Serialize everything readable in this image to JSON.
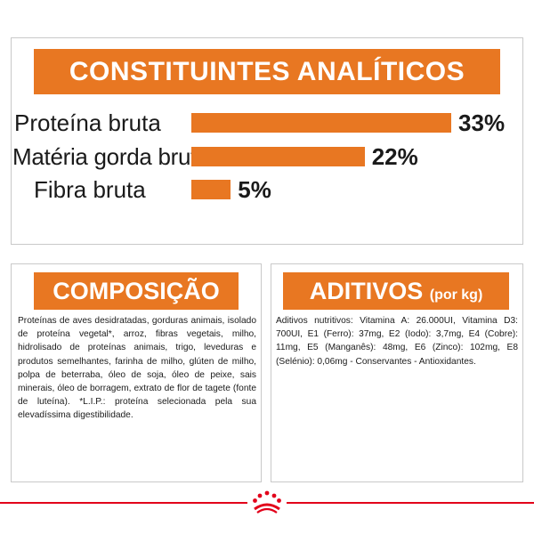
{
  "analytics": {
    "title": "CONSTITUINTES ANALÍTICOS",
    "rows": [
      {
        "label": "Proteína bruta",
        "value": "33%",
        "percent": 33
      },
      {
        "label": "Matéria gorda bruta",
        "value": "22%",
        "percent": 22
      },
      {
        "label": "Fibra bruta",
        "value": "5%",
        "percent": 5
      }
    ]
  },
  "composition": {
    "title": "COMPOSIÇÃO",
    "text": "Proteínas de aves desidratadas, gorduras animais, isolado de proteína vegetal*, arroz, fibras vegetais, milho, hidrolisado de proteínas animais, trigo, leveduras e produtos semelhantes, farinha de milho, glúten de milho, polpa de beterraba, óleo de soja, óleo de peixe, sais minerais, óleo de borragem, extrato de flor de tagete (fonte de luteína). *L.I.P.: proteína selecionada pela sua elevadíssima digestibilidade."
  },
  "additives": {
    "title": "ADITIVOS",
    "title_suffix": "(por kg)",
    "text": "Aditivos nutritivos: Vitamina A: 26.000UI, Vitamina D3: 700UI, E1 (Ferro): 37mg, E2 (Iodo): 3,7mg, E4 (Cobre): 11mg, E5 (Manganês): 48mg, E6 (Zinco): 102mg, E8 (Selénio): 0,06mg - Conservantes - Antioxidantes."
  },
  "colors": {
    "accent": "#E87722",
    "brand_red": "#e2001a"
  },
  "logo": {
    "icon": "royal-canin-crown-icon"
  }
}
